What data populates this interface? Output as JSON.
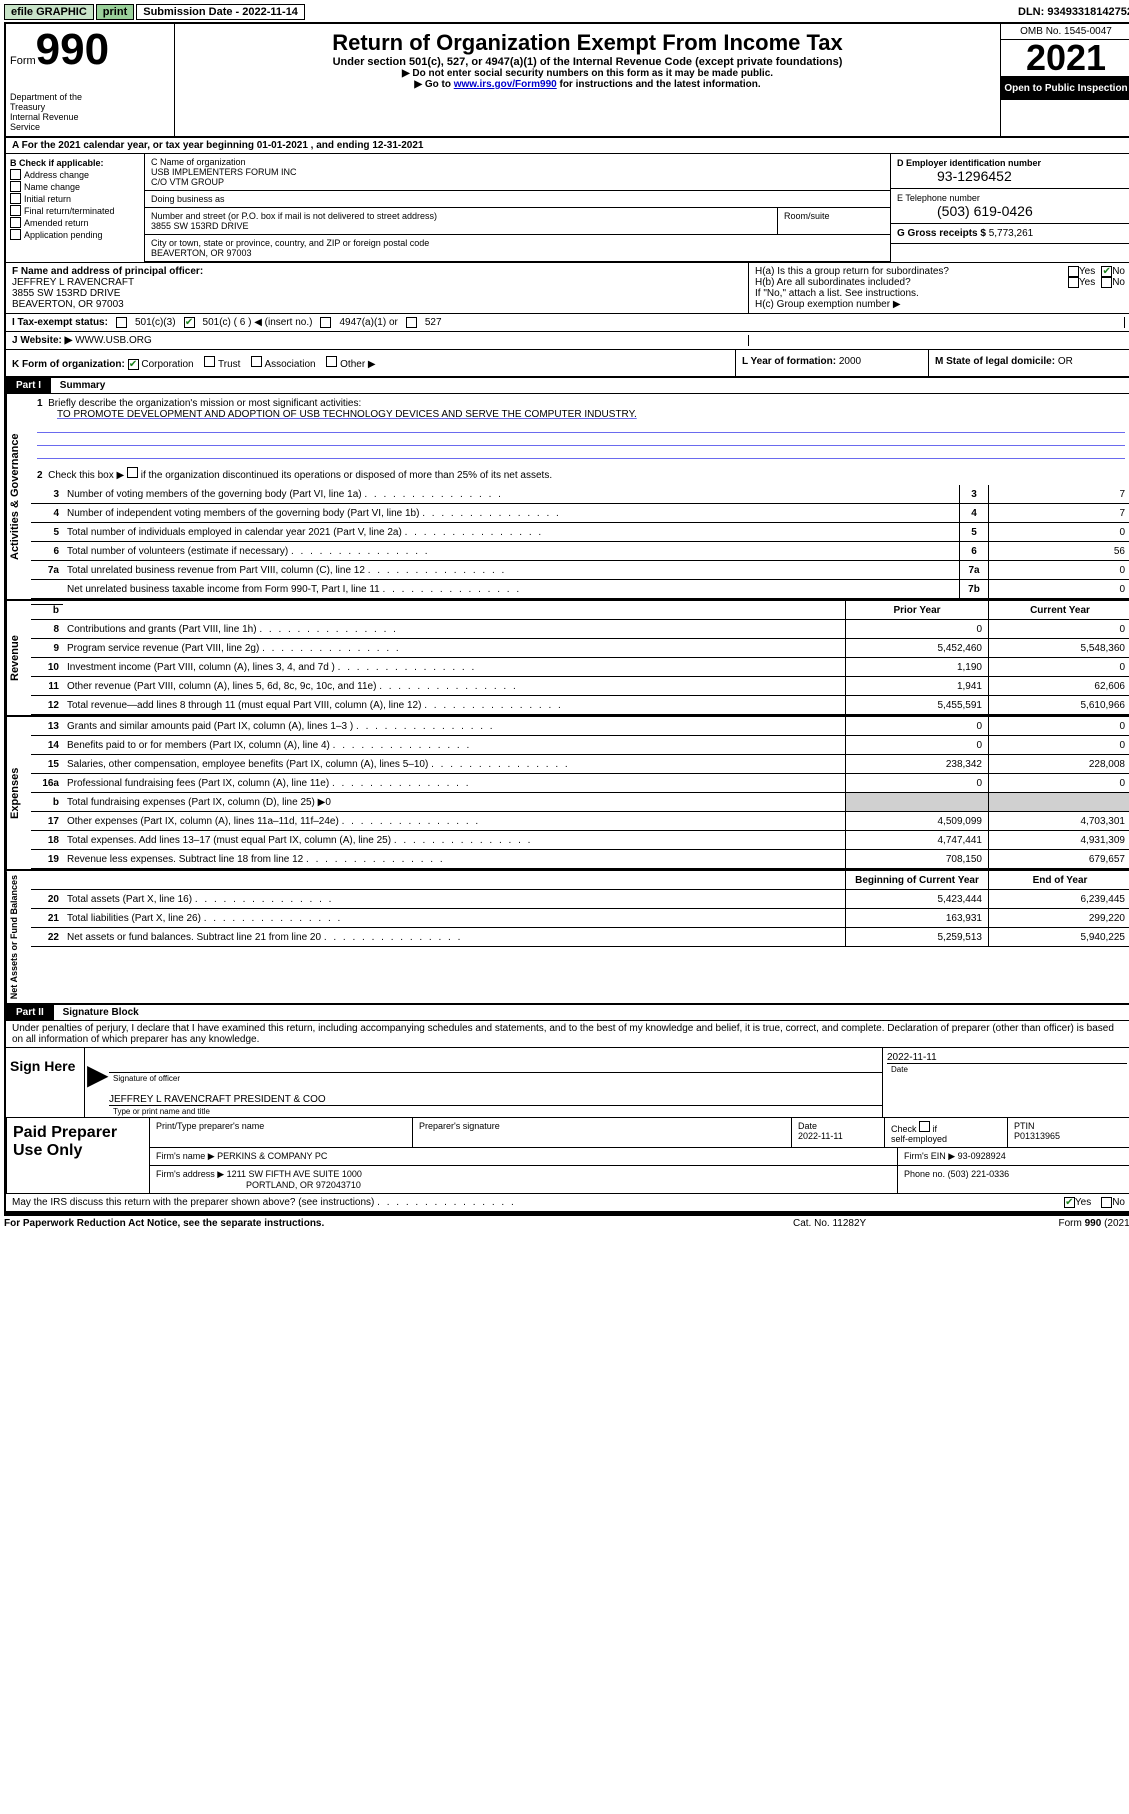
{
  "topbar": {
    "graphic": "efile GRAPHIC",
    "print": "print",
    "sub_date_label": "Submission Date - 2022-11-14",
    "dln": "DLN: 93493318142752"
  },
  "header": {
    "form_word": "Form",
    "form_num": "990",
    "dept": "Department of the Treasury\nInternal Revenue Service",
    "title": "Return of Organization Exempt From Income Tax",
    "sub": "Under section 501(c), 527, or 4947(a)(1) of the Internal Revenue Code (except private foundations)",
    "line1": "▶ Do not enter social security numbers on this form as it may be made public.",
    "line2_pre": "▶ Go to ",
    "line2_link": "www.irs.gov/Form990",
    "line2_post": " for instructions and the latest information.",
    "omb": "OMB No. 1545-0047",
    "year": "2021",
    "open": "Open to Public Inspection"
  },
  "tax_year": {
    "line": "A For the 2021 calendar year, or tax year beginning 01-01-2021   , and ending 12-31-2021"
  },
  "sectionB": {
    "hdr": "B Check if applicable:",
    "items": [
      "Address change",
      "Name change",
      "Initial return",
      "Final return/terminated",
      "Amended return",
      "Application pending"
    ]
  },
  "sectionC": {
    "name_lbl": "C Name of organization",
    "name": "USB IMPLEMENTERS FORUM INC",
    "care_of": "C/O VTM GROUP",
    "dba_lbl": "Doing business as",
    "addr_lbl": "Number and street (or P.O. box if mail is not delivered to street address)",
    "addr": "3855 SW 153RD DRIVE",
    "room_lbl": "Room/suite",
    "city_lbl": "City or town, state or province, country, and ZIP or foreign postal code",
    "city": "BEAVERTON, OR  97003"
  },
  "sectionD": {
    "lbl": "D Employer identification number",
    "val": "93-1296452"
  },
  "sectionE": {
    "lbl": "E Telephone number",
    "val": "(503) 619-0426"
  },
  "sectionG": {
    "lbl": "G Gross receipts $",
    "val": "5,773,261"
  },
  "sectionF": {
    "lbl": "F Name and address of principal officer:",
    "name": "JEFFREY L RAVENCRAFT",
    "addr1": "3855 SW 153RD DRIVE",
    "addr2": "BEAVERTON, OR  97003"
  },
  "sectionH": {
    "ha": "H(a)  Is this a group return for subordinates?",
    "ha_yes": "Yes",
    "ha_no": "No",
    "hb": "H(b)  Are all subordinates included?",
    "hb_note": "If \"No,\" attach a list. See instructions.",
    "hc": "H(c)  Group exemption number ▶"
  },
  "sectionI": {
    "lbl": "I   Tax-exempt status:",
    "opt1": "501(c)(3)",
    "opt2": "501(c) ( 6 ) ◀ (insert no.)",
    "opt3": "4947(a)(1) or",
    "opt4": "527"
  },
  "sectionJ": {
    "lbl": "J   Website: ▶",
    "val": "WWW.USB.ORG"
  },
  "sectionK": {
    "lbl": "K Form of organization:",
    "opts": [
      "Corporation",
      "Trust",
      "Association",
      "Other ▶"
    ]
  },
  "sectionL": {
    "lbl": "L Year of formation:",
    "val": "2000"
  },
  "sectionM": {
    "lbl": "M State of legal domicile:",
    "val": "OR"
  },
  "part1": {
    "hdr": "Part I",
    "title": "Summary",
    "line1": "Briefly describe the organization's mission or most significant activities:",
    "mission": "TO PROMOTE DEVELOPMENT AND ADOPTION OF USB TECHNOLOGY DEVICES AND SERVE THE COMPUTER INDUSTRY.",
    "line2": "Check this box ▶     if the organization discontinued its operations or disposed of more than 25% of its net assets.",
    "governance_label": "Activities & Governance",
    "revenue_label": "Revenue",
    "expenses_label": "Expenses",
    "netassets_label": "Net Assets or Fund Balances",
    "prior_year": "Prior Year",
    "current_year": "Current Year",
    "begin_year": "Beginning of Current Year",
    "end_year": "End of Year",
    "rows_gov": [
      {
        "n": "3",
        "d": "Number of voting members of the governing body (Part VI, line 1a)",
        "k": "3",
        "v": "7"
      },
      {
        "n": "4",
        "d": "Number of independent voting members of the governing body (Part VI, line 1b)",
        "k": "4",
        "v": "7"
      },
      {
        "n": "5",
        "d": "Total number of individuals employed in calendar year 2021 (Part V, line 2a)",
        "k": "5",
        "v": "0"
      },
      {
        "n": "6",
        "d": "Total number of volunteers (estimate if necessary)",
        "k": "6",
        "v": "56"
      },
      {
        "n": "7a",
        "d": "Total unrelated business revenue from Part VIII, column (C), line 12",
        "k": "7a",
        "v": "0"
      },
      {
        "n": "",
        "d": "Net unrelated business taxable income from Form 990-T, Part I, line 11",
        "k": "7b",
        "v": "0"
      }
    ],
    "rows_rev": [
      {
        "n": "8",
        "d": "Contributions and grants (Part VIII, line 1h)",
        "p": "0",
        "c": "0"
      },
      {
        "n": "9",
        "d": "Program service revenue (Part VIII, line 2g)",
        "p": "5,452,460",
        "c": "5,548,360"
      },
      {
        "n": "10",
        "d": "Investment income (Part VIII, column (A), lines 3, 4, and 7d )",
        "p": "1,190",
        "c": "0"
      },
      {
        "n": "11",
        "d": "Other revenue (Part VIII, column (A), lines 5, 6d, 8c, 9c, 10c, and 11e)",
        "p": "1,941",
        "c": "62,606"
      },
      {
        "n": "12",
        "d": "Total revenue—add lines 8 through 11 (must equal Part VIII, column (A), line 12)",
        "p": "5,455,591",
        "c": "5,610,966"
      }
    ],
    "rows_exp": [
      {
        "n": "13",
        "d": "Grants and similar amounts paid (Part IX, column (A), lines 1–3 )",
        "p": "0",
        "c": "0"
      },
      {
        "n": "14",
        "d": "Benefits paid to or for members (Part IX, column (A), line 4)",
        "p": "0",
        "c": "0"
      },
      {
        "n": "15",
        "d": "Salaries, other compensation, employee benefits (Part IX, column (A), lines 5–10)",
        "p": "238,342",
        "c": "228,008"
      },
      {
        "n": "16a",
        "d": "Professional fundraising fees (Part IX, column (A), line 11e)",
        "p": "0",
        "c": "0"
      },
      {
        "n": "b",
        "d": "Total fundraising expenses (Part IX, column (D), line 25) ▶0",
        "p": "",
        "c": "",
        "shaded": true
      },
      {
        "n": "17",
        "d": "Other expenses (Part IX, column (A), lines 11a–11d, 11f–24e)",
        "p": "4,509,099",
        "c": "4,703,301"
      },
      {
        "n": "18",
        "d": "Total expenses. Add lines 13–17 (must equal Part IX, column (A), line 25)",
        "p": "4,747,441",
        "c": "4,931,309"
      },
      {
        "n": "19",
        "d": "Revenue less expenses. Subtract line 18 from line 12",
        "p": "708,150",
        "c": "679,657"
      }
    ],
    "rows_net": [
      {
        "n": "20",
        "d": "Total assets (Part X, line 16)",
        "p": "5,423,444",
        "c": "6,239,445"
      },
      {
        "n": "21",
        "d": "Total liabilities (Part X, line 26)",
        "p": "163,931",
        "c": "299,220"
      },
      {
        "n": "22",
        "d": "Net assets or fund balances. Subtract line 21 from line 20",
        "p": "5,259,513",
        "c": "5,940,225"
      }
    ]
  },
  "part2": {
    "hdr": "Part II",
    "title": "Signature Block",
    "declaration": "Under penalties of perjury, I declare that I have examined this return, including accompanying schedules and statements, and to the best of my knowledge and belief, it is true, correct, and complete. Declaration of preparer (other than officer) is based on all information of which preparer has any knowledge.",
    "sign_here": "Sign Here",
    "sig_officer": "Signature of officer",
    "sig_date": "2022-11-11",
    "date_lbl": "Date",
    "officer_name": "JEFFREY L RAVENCRAFT  PRESIDENT & COO",
    "name_lbl": "Type or print name and title",
    "paid": "Paid Preparer Use Only",
    "prep_name_lbl": "Print/Type preparer's name",
    "prep_sig_lbl": "Preparer's signature",
    "prep_date_lbl": "Date",
    "prep_date": "2022-11-11",
    "check_lbl": "Check      if self-employed",
    "ptin_lbl": "PTIN",
    "ptin": "P01313965",
    "firm_name_lbl": "Firm's name    ▶",
    "firm_name": "PERKINS & COMPANY PC",
    "firm_ein_lbl": "Firm's EIN ▶",
    "firm_ein": "93-0928924",
    "firm_addr_lbl": "Firm's address ▶",
    "firm_addr1": "1211 SW FIFTH AVE SUITE 1000",
    "firm_addr2": "PORTLAND, OR  972043710",
    "phone_lbl": "Phone no.",
    "phone": "(503) 221-0336",
    "discuss": "May the IRS discuss this return with the preparer shown above? (see instructions)",
    "yes": "Yes",
    "no": "No"
  },
  "footer": {
    "left": "For Paperwork Reduction Act Notice, see the separate instructions.",
    "mid": "Cat. No. 11282Y",
    "right": "Form 990 (2021)"
  }
}
